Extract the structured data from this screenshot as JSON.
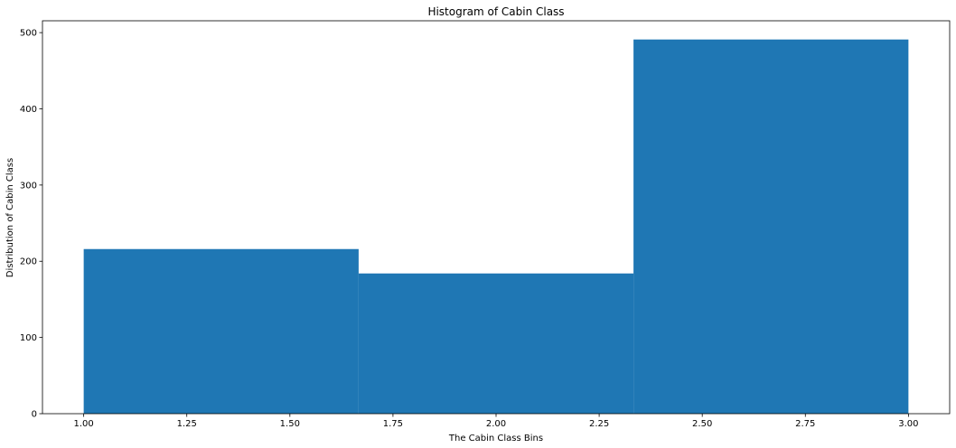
{
  "chart_data": {
    "type": "bar",
    "title": "Histogram of Cabin Class",
    "xlabel": "The Cabin Class Bins",
    "ylabel": "Distribution of Cabin Class",
    "bin_edges": [
      1.0,
      1.6667,
      2.3333,
      3.0
    ],
    "values": [
      216,
      184,
      491
    ],
    "xlim": [
      0.9,
      3.1
    ],
    "ylim": [
      0,
      515.55
    ],
    "xticks": [
      "1.00",
      "1.25",
      "1.50",
      "1.75",
      "2.00",
      "2.25",
      "2.50",
      "2.75",
      "3.00"
    ],
    "yticks": [
      "0",
      "100",
      "200",
      "300",
      "400",
      "500"
    ],
    "grid": false,
    "bar_color": "#1f77b4"
  }
}
